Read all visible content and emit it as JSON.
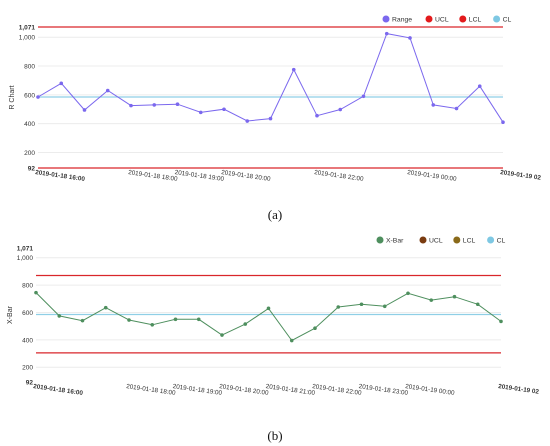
{
  "chart_data": [
    {
      "type": "line",
      "caption": "(a)",
      "ylabel": "R Chart",
      "xlabel": "",
      "ylim": [
        92,
        1071
      ],
      "yticks": [
        {
          "value": 1071,
          "label": "1,071",
          "bold": true
        },
        {
          "value": 1000,
          "label": "1,000"
        },
        {
          "value": 800,
          "label": "800"
        },
        {
          "value": 600,
          "label": "600"
        },
        {
          "value": 400,
          "label": "400"
        },
        {
          "value": 200,
          "label": "200"
        },
        {
          "value": 92,
          "label": "92",
          "bold": true
        }
      ],
      "xticks": [
        {
          "hour": 0,
          "label": "2019-01-18 16:00",
          "bold": true
        },
        {
          "hour": 2,
          "label": "2019-01-18 18:00"
        },
        {
          "hour": 3,
          "label": "2019-01-18 19:00"
        },
        {
          "hour": 4,
          "label": "2019-01-18 20:00"
        },
        {
          "hour": 6,
          "label": "2019-01-18 22:00"
        },
        {
          "hour": 8,
          "label": "2019-01-19 00:00"
        },
        {
          "hour": 10,
          "label": "2019-01-19 02",
          "bold": true
        }
      ],
      "legend": [
        {
          "name": "Range",
          "color": "#7b68ee"
        },
        {
          "name": "UCL",
          "color": "#e31a1c"
        },
        {
          "name": "LCL",
          "color": "#e31a1c"
        },
        {
          "name": "CL",
          "color": "#7ec8e3"
        }
      ],
      "series": [
        {
          "name": "Range",
          "color": "#7b68ee",
          "hours": [
            0,
            0.5,
            1,
            1.5,
            2,
            2.5,
            3,
            3.5,
            4,
            4.5,
            5,
            5.5,
            6,
            6.5,
            7,
            7.5,
            8,
            8.5,
            9,
            9.5,
            10
          ],
          "values": [
            585,
            680,
            495,
            630,
            525,
            530,
            535,
            478,
            500,
            418,
            435,
            775,
            455,
            498,
            590,
            1025,
            995,
            530,
            505,
            660,
            410
          ]
        }
      ],
      "ucl": 1071,
      "lcl": 92,
      "cl": 585
    },
    {
      "type": "line",
      "caption": "(b)",
      "ylabel": "X-Bar",
      "xlabel": "",
      "ylim": [
        92,
        1071
      ],
      "yticks": [
        {
          "value": 1071,
          "label": "1,071",
          "bold": true
        },
        {
          "value": 1000,
          "label": "1,000"
        },
        {
          "value": 800,
          "label": "800"
        },
        {
          "value": 600,
          "label": "600"
        },
        {
          "value": 400,
          "label": "400"
        },
        {
          "value": 200,
          "label": "200"
        },
        {
          "value": 92,
          "label": "92",
          "bold": true
        }
      ],
      "xticks": [
        {
          "hour": 0,
          "label": "2019-01-18 16:00",
          "bold": true
        },
        {
          "hour": 2,
          "label": "2019-01-18 18:00"
        },
        {
          "hour": 3,
          "label": "2019-01-18 19:00"
        },
        {
          "hour": 4,
          "label": "2019-01-18 20:00"
        },
        {
          "hour": 5,
          "label": "2019-01-18 21:00"
        },
        {
          "hour": 6,
          "label": "2019-01-18 22:00"
        },
        {
          "hour": 7,
          "label": "2019-01-18 23:00"
        },
        {
          "hour": 8,
          "label": "2019-01-19 00:00"
        },
        {
          "hour": 10,
          "label": "2019-01-19 02",
          "bold": true
        }
      ],
      "legend": [
        {
          "name": "X-Bar",
          "color": "#4e8f5e"
        },
        {
          "name": "UCL",
          "color": "#7a3b10"
        },
        {
          "name": "LCL",
          "color": "#8a6a1a"
        },
        {
          "name": "CL",
          "color": "#7ec8e3"
        }
      ],
      "series": [
        {
          "name": "X-Bar",
          "color": "#4e8f5e",
          "hours": [
            0,
            0.5,
            1,
            1.5,
            2,
            2.5,
            3,
            3.5,
            4,
            4.5,
            5,
            5.5,
            6,
            6.5,
            7,
            7.5,
            8,
            8.5,
            9,
            9.5,
            10
          ],
          "values": [
            745,
            575,
            540,
            635,
            545,
            510,
            550,
            550,
            435,
            515,
            630,
            395,
            485,
            640,
            660,
            645,
            740,
            690,
            715,
            660,
            535
          ]
        }
      ],
      "ucl": 870,
      "lcl": 305,
      "cl": 585
    }
  ]
}
